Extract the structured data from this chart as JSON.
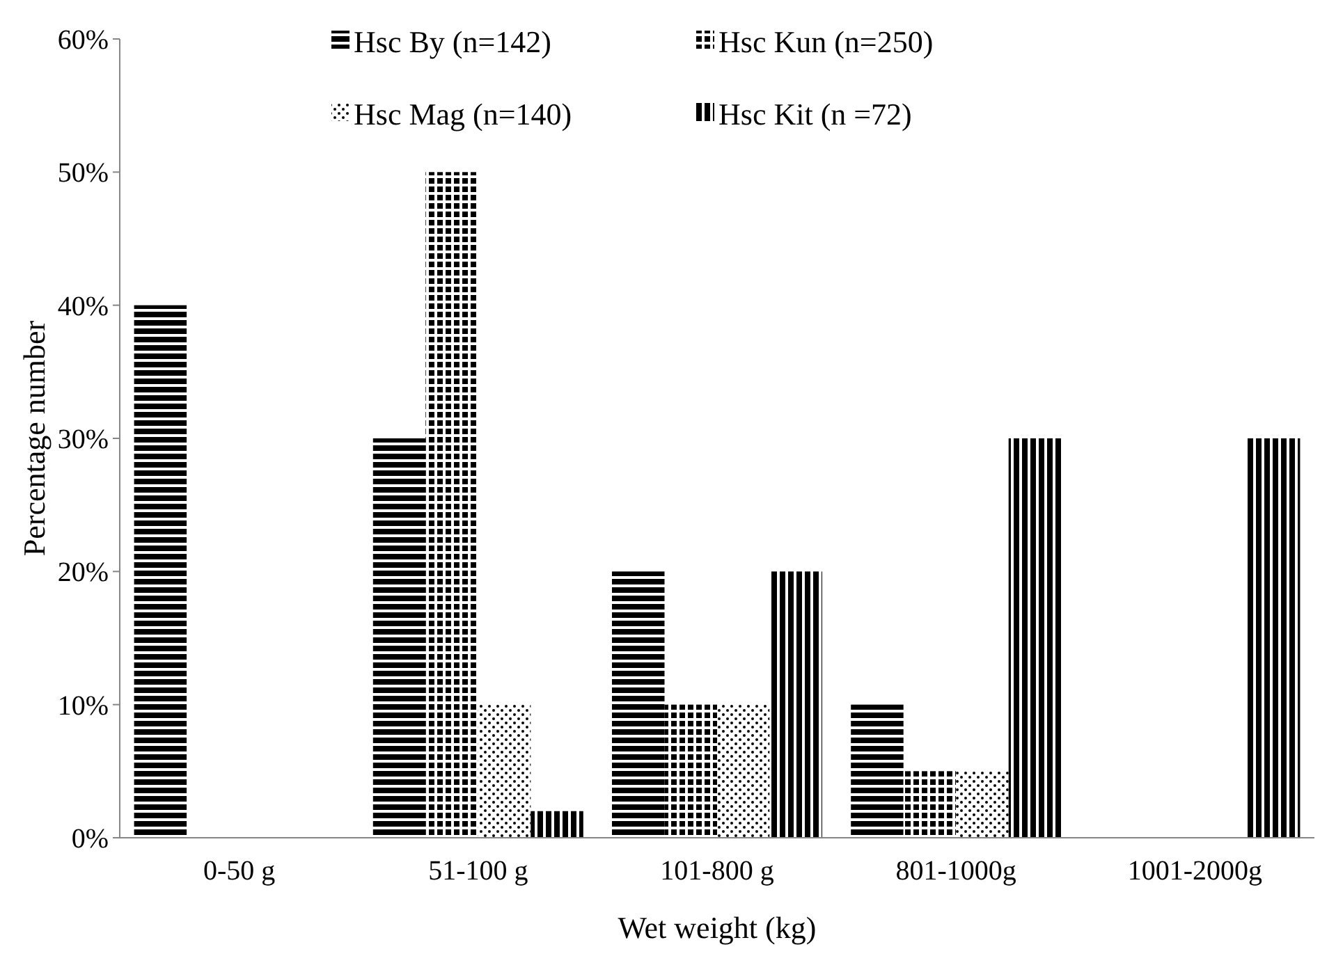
{
  "chart_data": {
    "type": "bar",
    "xlabel": "Wet weight (kg)",
    "ylabel": "Percentage number",
    "categories": [
      "0-50 g",
      "51-100 g",
      "101-800 g",
      "801-1000g",
      "1001-2000g"
    ],
    "series": [
      {
        "name": "Hsc By (n=142)",
        "color": "#000000",
        "values": [
          40,
          30,
          20,
          10,
          0
        ]
      },
      {
        "name": "Hsc Kun (n=250)",
        "color": "#000000",
        "values": [
          0,
          50,
          10,
          5,
          0
        ]
      },
      {
        "name": "Hsc Mag (n=140)",
        "color": "#000000",
        "values": [
          0,
          10,
          10,
          5,
          0
        ]
      },
      {
        "name": "Hsc Kit (n =72)",
        "color": "#000000",
        "values": [
          0,
          2,
          20,
          30,
          30
        ]
      }
    ],
    "ylim": [
      0,
      60
    ],
    "yticks": [
      {
        "value": 0,
        "label": "0%"
      },
      {
        "value": 10,
        "label": "10%"
      },
      {
        "value": 20,
        "label": "20%"
      },
      {
        "value": 30,
        "label": "30%"
      },
      {
        "value": 40,
        "label": "40%"
      },
      {
        "value": 50,
        "label": "50%"
      },
      {
        "value": 60,
        "label": "60%"
      }
    ],
    "grid": false,
    "legend": "top"
  }
}
